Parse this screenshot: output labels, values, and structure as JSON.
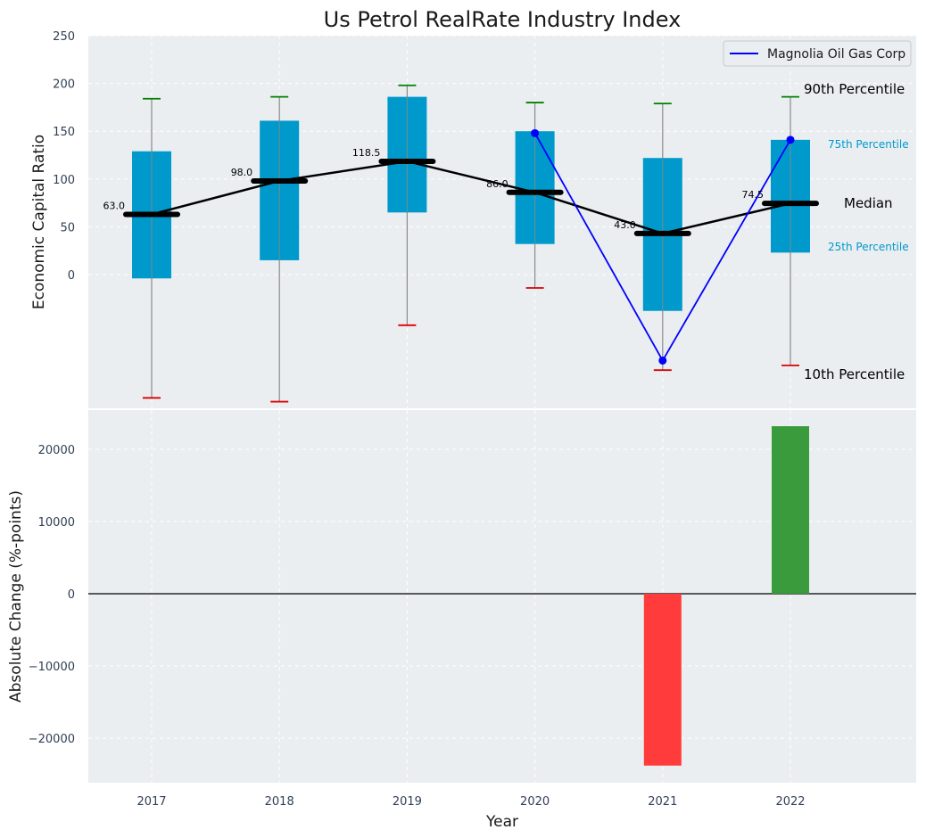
{
  "title": "Us Petrol RealRate Industry Index",
  "colors": {
    "panel_bg": "#eaeef0",
    "box": "#0099cc",
    "median": "#000000",
    "company": "#0000ff",
    "whisker_top": "#008000",
    "whisker_bottom": "#dd0000",
    "bar_pos": "#3a9b3d",
    "bar_neg": "#ff3b3b"
  },
  "chart_data": [
    {
      "type": "box",
      "ylabel": "Economic Capital Ratio",
      "yticks": [
        "250",
        "200",
        "150",
        "100",
        "50",
        "0"
      ],
      "ylim": [
        -135,
        250
      ],
      "categories": [
        "2017",
        "2018",
        "2019",
        "2020",
        "2021",
        "2022"
      ],
      "p10": [
        -129,
        -133,
        -53,
        -14,
        -100,
        -95
      ],
      "q1": [
        -4,
        15,
        65,
        32,
        -38,
        23
      ],
      "median": [
        63.0,
        98.0,
        118.5,
        86.0,
        43.0,
        74.5
      ],
      "q3": [
        129,
        161,
        186,
        150,
        122,
        141
      ],
      "p90": [
        184,
        186,
        198,
        180,
        179,
        186
      ],
      "median_labels": [
        "63.0",
        "98.0",
        "118.5",
        "86.0",
        "43.0",
        "74.5"
      ],
      "series": [
        {
          "name": "Magnolia Oil Gas Corp",
          "x": [
            "2020",
            "2021",
            "2022"
          ],
          "values": [
            148,
            -90,
            141
          ]
        }
      ],
      "legend": "top-right",
      "annotations": {
        "p90": "90th Percentile",
        "q3": "75th Percentile",
        "median": "Median",
        "q1": "25th Percentile",
        "p10": "10th Percentile"
      },
      "grid": true
    },
    {
      "type": "bar",
      "xlabel": "Year",
      "ylabel": "Absolute Change (%-points)",
      "categories": [
        "2017",
        "2018",
        "2019",
        "2020",
        "2021",
        "2022"
      ],
      "values": [
        0,
        0,
        0,
        0,
        -23800,
        23200
      ],
      "yticks": [
        "20000",
        "10000",
        "0",
        "−10000",
        "−20000"
      ],
      "ylim": [
        -26000,
        26000
      ],
      "grid": true
    }
  ]
}
